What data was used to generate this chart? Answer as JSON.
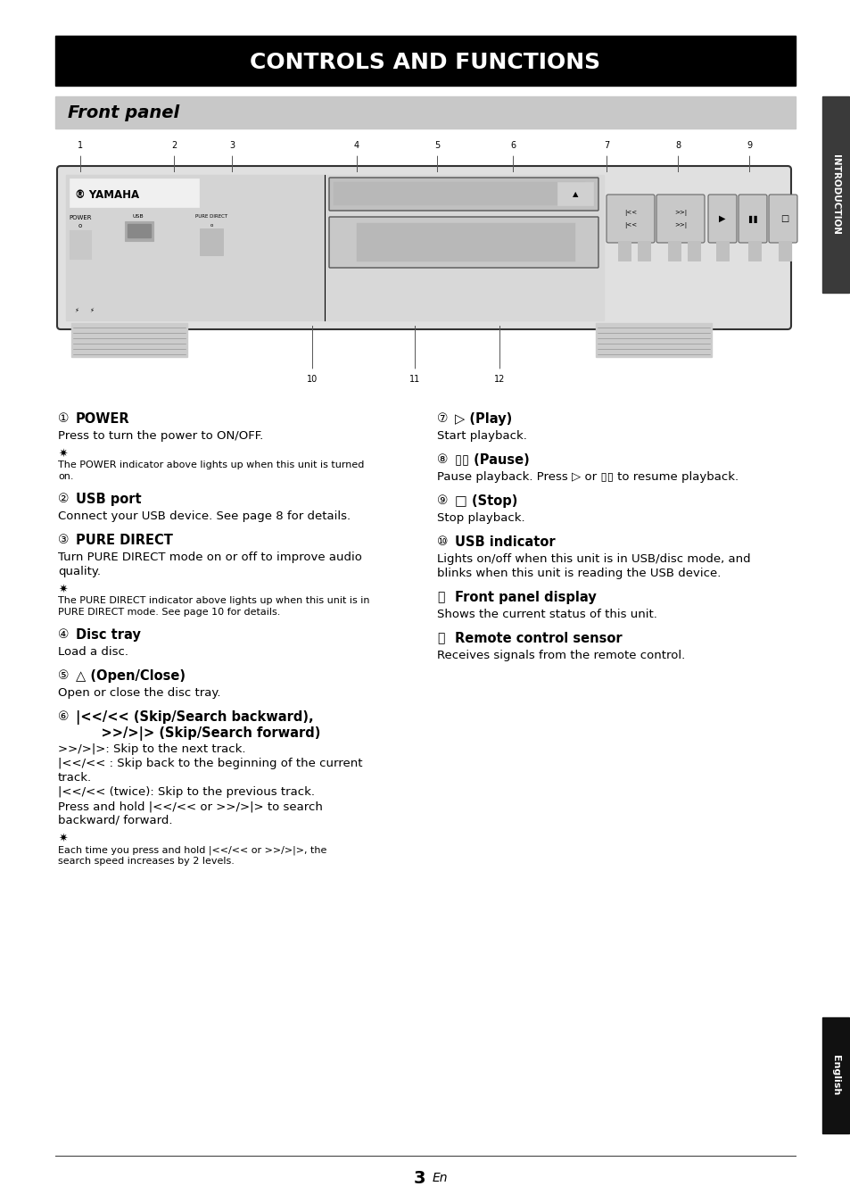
{
  "title": "CONTROLS AND FUNCTIONS",
  "subtitle": "Front panel",
  "bg_color": "#ffffff",
  "title_bg": "#000000",
  "title_color": "#ffffff",
  "subtitle_bg": "#c8c8c8",
  "subtitle_color": "#000000",
  "page_number": "3",
  "page_suffix": "En",
  "sections_left": [
    {
      "num": 1,
      "heading": "POWER",
      "body": "Press to turn the power to ON/OFF.",
      "note": "The POWER indicator above lights up when this unit is turned\non."
    },
    {
      "num": 2,
      "heading": "USB port",
      "body": "Connect your USB device. See page 8 for details.",
      "note": null
    },
    {
      "num": 3,
      "heading": "PURE DIRECT",
      "body": "Turn PURE DIRECT mode on or off to improve audio\nquality.",
      "note": "The PURE DIRECT indicator above lights up when this unit is in\nPURE DIRECT mode. See page 10 for details."
    },
    {
      "num": 4,
      "heading": "Disc tray",
      "body": "Load a disc.",
      "note": null
    },
    {
      "num": 5,
      "heading": "△ (Open/Close)",
      "body": "Open or close the disc tray.",
      "note": null
    },
    {
      "num": 6,
      "heading": "|<</<< (Skip/Search backward),\n    >>/>|> (Skip/Search forward)",
      "body": ">>/>|>: Skip to the next track.\n|<</<< : Skip back to the beginning of the current\ntrack.\n|<</<< (twice): Skip to the previous track.\nPress and hold |<</<< or >>/>|> to search\nbackward/ forward.",
      "note": "Each time you press and hold |<</<< or >>/>|>, the\nsearch speed increases by 2 levels."
    }
  ],
  "sections_right": [
    {
      "num": 7,
      "heading": "▷ (Play)",
      "body": "Start playback.",
      "note": null
    },
    {
      "num": 8,
      "heading": "▯▯ (Pause)",
      "body": "Pause playback. Press ▷ or ▯▯ to resume playback.",
      "note": null
    },
    {
      "num": 9,
      "heading": "□ (Stop)",
      "body": "Stop playback.",
      "note": null
    },
    {
      "num": 10,
      "heading": "USB indicator",
      "body": "Lights on/off when this unit is in USB/disc mode, and\nblinks when this unit is reading the USB device.",
      "note": null
    },
    {
      "num": 11,
      "heading": "Front panel display",
      "body": "Shows the current status of this unit.",
      "note": null
    },
    {
      "num": 12,
      "heading": "Remote control sensor",
      "body": "Receives signals from the remote control.",
      "note": null
    }
  ]
}
